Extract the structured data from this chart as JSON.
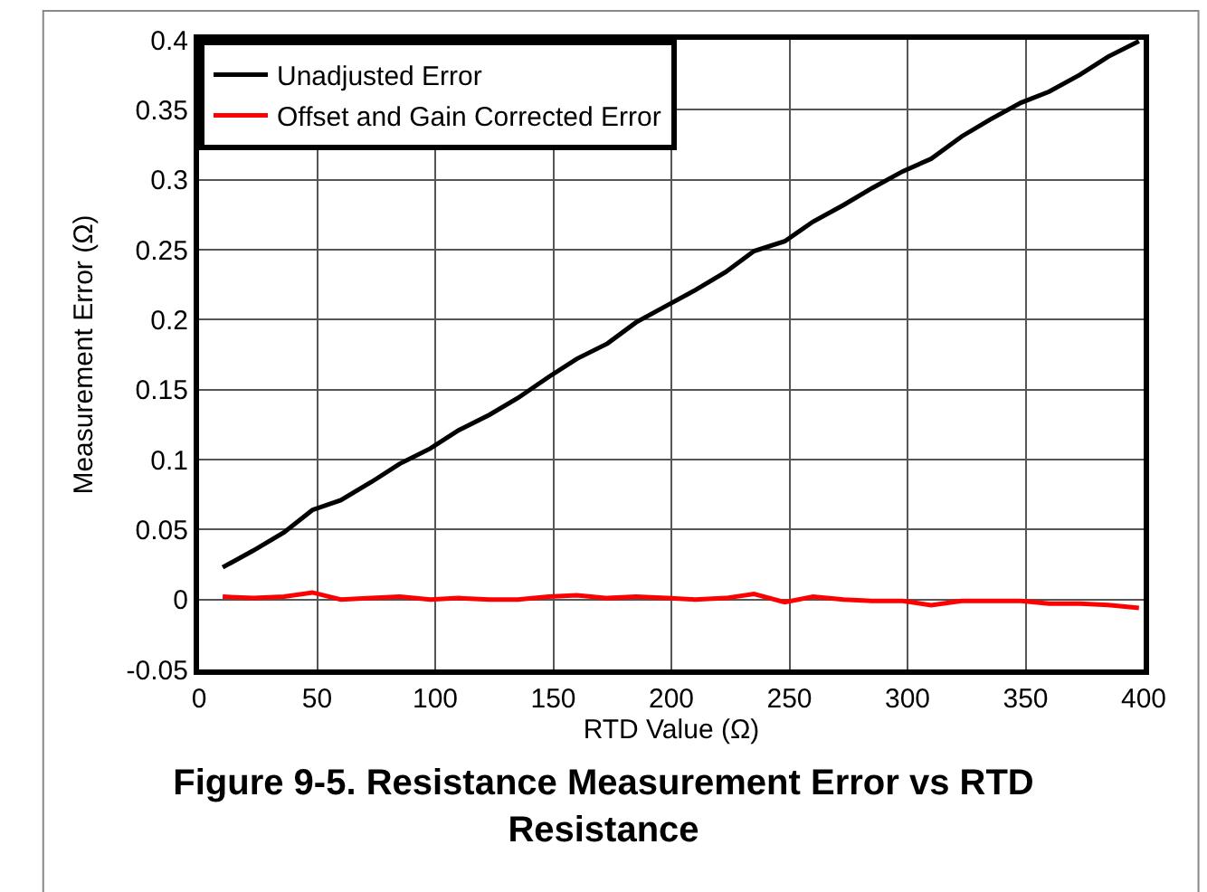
{
  "chart_data": {
    "type": "line",
    "title": "Figure 9-5. Resistance Measurement Error vs RTD Resistance",
    "xlabel": "RTD Value (Ω)",
    "ylabel": "Measurement Error (Ω)",
    "x": [
      10,
      23,
      36,
      48,
      60,
      73,
      85,
      98,
      110,
      123,
      135,
      148,
      160,
      173,
      185,
      198,
      210,
      223,
      235,
      248,
      260,
      273,
      285,
      298,
      310,
      323,
      335,
      348,
      360,
      373,
      385,
      398
    ],
    "series": [
      {
        "name": "Unadjusted Error",
        "color": "#000000",
        "values": [
          0.023,
          0.035,
          0.048,
          0.064,
          0.071,
          0.084,
          0.097,
          0.108,
          0.121,
          0.132,
          0.144,
          0.159,
          0.172,
          0.183,
          0.198,
          0.21,
          0.221,
          0.234,
          0.249,
          0.256,
          0.27,
          0.282,
          0.294,
          0.306,
          0.315,
          0.331,
          0.343,
          0.355,
          0.363,
          0.375,
          0.388,
          0.399
        ]
      },
      {
        "name": "Offset and Gain Corrected Error",
        "color": "#ff0000",
        "values": [
          0.002,
          0.001,
          0.002,
          0.005,
          0.0,
          0.001,
          0.002,
          0.0,
          0.001,
          0.0,
          0.0,
          0.002,
          0.003,
          0.001,
          0.002,
          0.001,
          0.0,
          0.001,
          0.004,
          -0.002,
          0.002,
          0.0,
          -0.001,
          -0.001,
          -0.004,
          -0.001,
          -0.001,
          -0.001,
          -0.003,
          -0.003,
          -0.004,
          -0.006
        ]
      }
    ],
    "xlim": [
      0,
      400
    ],
    "xticks": [
      0,
      50,
      100,
      150,
      200,
      250,
      300,
      350,
      400
    ],
    "ylim": [
      -0.05,
      0.4
    ],
    "yticks": [
      -0.05,
      0,
      0.05,
      0.1,
      0.15,
      0.2,
      0.25,
      0.3,
      0.35,
      0.4
    ],
    "grid": true,
    "legend": "top left",
    "marker": "none",
    "line_style": "solid"
  }
}
